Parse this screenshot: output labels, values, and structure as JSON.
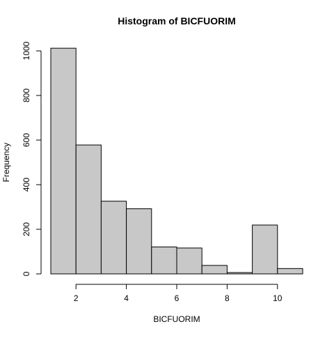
{
  "chart_data": {
    "type": "bar",
    "title": "Histogram of BICFUORIM",
    "xlabel": "BICFUORIM",
    "ylabel": "Frequency",
    "bin_edges": [
      1,
      2,
      3,
      4,
      5,
      6,
      7,
      8,
      9,
      10,
      11
    ],
    "values": [
      1012,
      578,
      326,
      292,
      121,
      116,
      38,
      6,
      219,
      24
    ],
    "xlim": [
      1,
      11
    ],
    "ylim": [
      0,
      1000
    ],
    "x_ticks": [
      2,
      4,
      6,
      8,
      10
    ],
    "y_ticks": [
      0,
      200,
      400,
      600,
      800,
      1000
    ],
    "bar_fill": "#c8c8c8",
    "bar_stroke": "#000000",
    "grid": false,
    "legend": "none"
  }
}
